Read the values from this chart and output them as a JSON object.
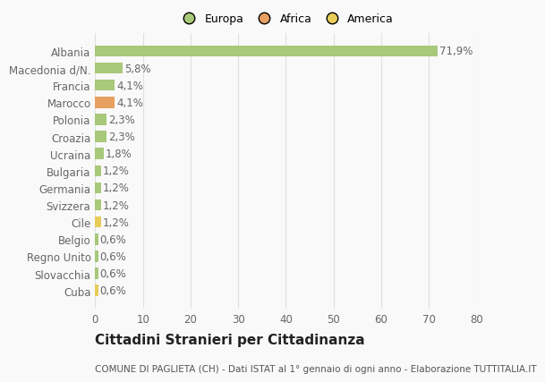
{
  "categories": [
    "Cuba",
    "Slovacchia",
    "Regno Unito",
    "Belgio",
    "Cile",
    "Svizzera",
    "Germania",
    "Bulgaria",
    "Ucraina",
    "Croazia",
    "Polonia",
    "Marocco",
    "Francia",
    "Macedonia d/N.",
    "Albania"
  ],
  "values": [
    0.6,
    0.6,
    0.6,
    0.6,
    1.2,
    1.2,
    1.2,
    1.2,
    1.8,
    2.3,
    2.3,
    4.1,
    4.1,
    5.8,
    71.9
  ],
  "labels": [
    "0,6%",
    "0,6%",
    "0,6%",
    "0,6%",
    "1,2%",
    "1,2%",
    "1,2%",
    "1,2%",
    "1,8%",
    "2,3%",
    "2,3%",
    "4,1%",
    "4,1%",
    "5,8%",
    "71,9%"
  ],
  "continents": [
    "America",
    "Europa",
    "Europa",
    "Europa",
    "America",
    "Europa",
    "Europa",
    "Europa",
    "Europa",
    "Europa",
    "Europa",
    "Africa",
    "Europa",
    "Europa",
    "Europa"
  ],
  "continent_colors": {
    "Europa": "#a8c87a",
    "Africa": "#e8a060",
    "America": "#e8cc58"
  },
  "legend_entries": [
    {
      "label": "Europa",
      "color": "#a8c87a"
    },
    {
      "label": "Africa",
      "color": "#e8a060"
    },
    {
      "label": "America",
      "color": "#e8cc58"
    }
  ],
  "title": "Cittadini Stranieri per Cittadinanza",
  "subtitle": "COMUNE DI PAGLIETA (CH) - Dati ISTAT al 1° gennaio di ogni anno - Elaborazione TUTTITALIA.IT",
  "xlim": [
    0,
    80
  ],
  "xticks": [
    0,
    10,
    20,
    30,
    40,
    50,
    60,
    70,
    80
  ],
  "background_color": "#f9f9f9",
  "grid_color": "#e0e0e0",
  "bar_height": 0.65,
  "title_fontsize": 11,
  "subtitle_fontsize": 7.5,
  "tick_fontsize": 8.5,
  "label_fontsize": 8.5
}
